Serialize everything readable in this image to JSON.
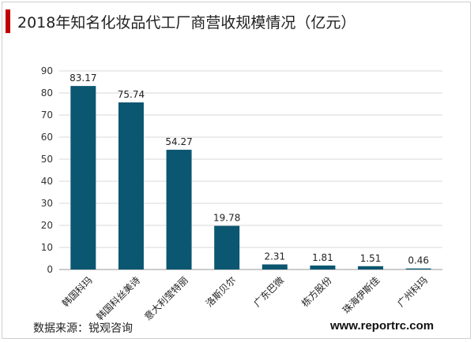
{
  "title": "2018年知名化妆品代工厂商营收规模情况（亿元）",
  "source": "数据来源：锐观咨询",
  "site": "www.reportrc.com",
  "colors": {
    "bar": "#0b5670",
    "accent": "#c00000",
    "grid": "#d9d9d9"
  },
  "chart_data": {
    "type": "bar",
    "title": "2018年知名化妆品代工厂商营收规模情况（亿元）",
    "categories": [
      "韩国科玛",
      "韩国科丝美诗",
      "意大利莹特丽",
      "洛斯贝尔",
      "广东巴微",
      "栋方股份",
      "珠海伊斯佳",
      "广州科玛"
    ],
    "values": [
      83.17,
      75.74,
      54.27,
      19.78,
      2.31,
      1.81,
      1.51,
      0.46
    ],
    "value_labels": [
      "83.17",
      "75.74",
      "54.27",
      "19.78",
      "2.31",
      "1.81",
      "1.51",
      "0.46"
    ],
    "ylim": [
      0,
      90
    ],
    "yticks": [
      0,
      10,
      20,
      30,
      40,
      50,
      60,
      70,
      80,
      90
    ],
    "xlabel": "",
    "ylabel": "",
    "grid": true
  }
}
